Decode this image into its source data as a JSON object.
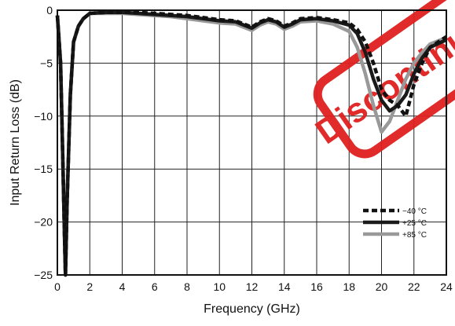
{
  "chart_data": {
    "type": "line",
    "title": "",
    "xlabel": "Frequency (GHz)",
    "ylabel": "Input Return Loss (dB)",
    "xlim": [
      0,
      24
    ],
    "ylim": [
      -25,
      0
    ],
    "xticks": [
      0,
      2,
      4,
      6,
      8,
      10,
      12,
      14,
      16,
      18,
      20,
      22,
      24
    ],
    "xtick_labels": [
      "0",
      "2",
      "4",
      "6",
      "8",
      "10",
      "12",
      "14",
      "16",
      "18",
      "20",
      "22",
      "24"
    ],
    "yticks": [
      0,
      -5,
      -10,
      -15,
      -20,
      -25
    ],
    "ytick_labels": [
      "0",
      "−5",
      "−10",
      "−15",
      "−20",
      "−25"
    ],
    "grid": true,
    "legend_position": "bottom-right",
    "watermark": "Discontinued",
    "series": [
      {
        "name": "−40 °C",
        "color": "#111111",
        "style": "dashed",
        "x": [
          0,
          0.2,
          0.35,
          0.45,
          0.5,
          0.6,
          0.8,
          1.0,
          1.3,
          1.6,
          2,
          3,
          4,
          5,
          6,
          7,
          8,
          9,
          10,
          11,
          11.5,
          12,
          12.5,
          13,
          13.5,
          14,
          14.5,
          15,
          16,
          17,
          18,
          18.5,
          19,
          19.5,
          20,
          20.5,
          21,
          21.5,
          22,
          22.5,
          23,
          24
        ],
        "y": [
          -0.5,
          -5,
          -15,
          -22,
          -25,
          -18,
          -8,
          -3,
          -1.5,
          -0.8,
          -0.3,
          -0.2,
          -0.2,
          -0.2,
          -0.3,
          -0.4,
          -0.5,
          -0.7,
          -0.9,
          -1.0,
          -1.3,
          -1.6,
          -1.1,
          -0.8,
          -1.0,
          -1.5,
          -1.2,
          -0.8,
          -0.7,
          -0.9,
          -1.2,
          -1.8,
          -3.0,
          -5.0,
          -7.5,
          -8.5,
          -9.0,
          -10.0,
          -7.0,
          -5.0,
          -3.5,
          -2.5
        ]
      },
      {
        "name": "+25 °C",
        "color": "#1a1a1a",
        "style": "solid",
        "x": [
          0,
          0.2,
          0.35,
          0.45,
          0.5,
          0.6,
          0.8,
          1.0,
          1.3,
          1.6,
          2,
          3,
          4,
          5,
          6,
          7,
          8,
          9,
          10,
          11,
          11.5,
          12,
          12.5,
          13,
          13.5,
          14,
          14.5,
          15,
          16,
          17,
          18,
          18.5,
          19,
          19.5,
          20,
          20.5,
          21,
          21.5,
          22,
          22.5,
          23,
          24
        ],
        "y": [
          -0.5,
          -5,
          -15,
          -22,
          -25,
          -18,
          -8,
          -3,
          -1.5,
          -0.8,
          -0.3,
          -0.2,
          -0.2,
          -0.3,
          -0.4,
          -0.5,
          -0.6,
          -0.8,
          -1.0,
          -1.1,
          -1.4,
          -1.7,
          -1.2,
          -0.9,
          -1.1,
          -1.6,
          -1.3,
          -0.9,
          -0.8,
          -1.0,
          -1.4,
          -2.2,
          -4.0,
          -6.5,
          -8.5,
          -9.5,
          -9.0,
          -8.0,
          -6.0,
          -4.5,
          -3.5,
          -2.8
        ]
      },
      {
        "name": "+85 °C",
        "color": "#999999",
        "style": "solid",
        "x": [
          0,
          0.2,
          0.35,
          0.45,
          0.5,
          0.6,
          0.8,
          1.0,
          1.3,
          1.6,
          2,
          3,
          4,
          5,
          6,
          7,
          8,
          9,
          10,
          11,
          11.5,
          12,
          12.5,
          13,
          13.5,
          14,
          14.5,
          15,
          16,
          17,
          18,
          18.5,
          19,
          19.5,
          20,
          20.5,
          21,
          21.5,
          22,
          22.5,
          23,
          24
        ],
        "y": [
          -0.5,
          -5,
          -15,
          -22,
          -25,
          -18,
          -8,
          -3,
          -1.5,
          -0.8,
          -0.3,
          -0.3,
          -0.3,
          -0.4,
          -0.5,
          -0.6,
          -0.8,
          -1.0,
          -1.2,
          -1.3,
          -1.6,
          -1.9,
          -1.4,
          -1.1,
          -1.3,
          -1.8,
          -1.5,
          -1.1,
          -1.0,
          -1.3,
          -2.0,
          -3.5,
          -6.0,
          -9.0,
          -11.5,
          -10.5,
          -8.5,
          -6.5,
          -5.0,
          -4.0,
          -3.2,
          -2.6
        ]
      }
    ]
  }
}
